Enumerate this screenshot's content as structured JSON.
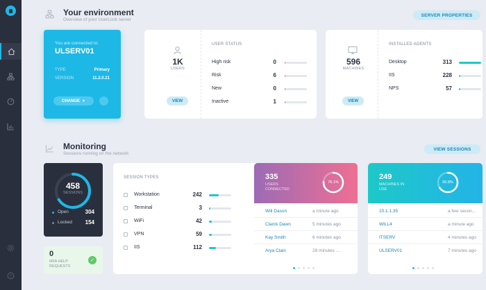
{
  "environment": {
    "title": "Your environment",
    "subtitle": "Overview of your UserLock server",
    "server_properties_label": "SERVER PROPERTIES",
    "connected_label": "You are connected to:",
    "server_name": "ULSERV01",
    "type_key": "TYPE",
    "type_value": "Primary",
    "version_key": "VERSION",
    "version_value": "11.2.0.21",
    "change_label": "CHANGE",
    "users": {
      "count": "1K",
      "label": "USERS",
      "view_label": "VIEW"
    },
    "user_status": {
      "header": "USER STATUS",
      "rows": [
        {
          "label": "High risk",
          "value": "0",
          "fraction": 0.04,
          "color": "#e86b8b"
        },
        {
          "label": "Risk",
          "value": "6",
          "fraction": 0.04,
          "color": "#e86b8b"
        },
        {
          "label": "New",
          "value": "0",
          "fraction": 0.04,
          "color": "#9b6fc6"
        },
        {
          "label": "Inactive",
          "value": "1",
          "fraction": 0.04,
          "color": "#9b6fc6"
        }
      ]
    },
    "machines": {
      "count": "596",
      "label": "MACHINES",
      "view_label": "VIEW"
    },
    "installed_agents": {
      "header": "INSTALLED AGENTS",
      "rows": [
        {
          "label": "Desktop",
          "value": "313",
          "fraction": 1.0,
          "color": "#1ec8c8"
        },
        {
          "label": "IIS",
          "value": "228",
          "fraction": 0.05,
          "color": "#1ec8c8"
        },
        {
          "label": "NPS",
          "value": "57",
          "fraction": 0.05,
          "color": "#1ec8c8"
        }
      ]
    }
  },
  "monitoring": {
    "title": "Monitoring",
    "subtitle": "Sessions running on the network",
    "view_sessions_label": "VIEW SESSIONS",
    "sessions": {
      "count": "458",
      "label": "SESSIONS",
      "open_label": "Open",
      "open_value": "304",
      "locked_label": "Locked",
      "locked_value": "154",
      "open_fraction": 0.66
    },
    "mfa": {
      "count": "0",
      "label": "MFA HELP REQUESTS"
    },
    "session_types": {
      "header": "SESSION TYPES",
      "rows": [
        {
          "label": "Workstation",
          "value": "242",
          "fraction": 0.45,
          "icon": "monitor-icon"
        },
        {
          "label": "Terminal",
          "value": "3",
          "fraction": 0.06,
          "icon": "terminal-icon"
        },
        {
          "label": "WiFi",
          "value": "42",
          "fraction": 0.12,
          "icon": "wifi-icon"
        },
        {
          "label": "VPN",
          "value": "59",
          "fraction": 0.14,
          "icon": "vpn-icon"
        },
        {
          "label": "IIS",
          "value": "112",
          "fraction": 0.3,
          "icon": "globe-icon"
        }
      ]
    },
    "users_connected": {
      "count": "335",
      "label_line1": "USERS",
      "label_line2": "CONNECTED",
      "percent": "76.1%",
      "fraction": 0.761,
      "rows": [
        {
          "name": "Will Dason",
          "time": "a minute ago"
        },
        {
          "name": "Clarck Dawn",
          "time": "5 minutes ago"
        },
        {
          "name": "Kay Smith",
          "time": "6 minutes ago"
        },
        {
          "name": "Arya Clain",
          "time": "28 minutes ..."
        }
      ]
    },
    "machines_in_use": {
      "count": "249",
      "label_line1": "MACHINES IN",
      "label_line2": "USE",
      "percent": "65.8%",
      "fraction": 0.658,
      "rows": [
        {
          "name": "10.1.1.35",
          "time": "a few secon..."
        },
        {
          "name": "WILL4",
          "time": "a minute ago"
        },
        {
          "name": "ITSERV",
          "time": "4 minutes ago"
        },
        {
          "name": "ULSERV01",
          "time": "7 minutes ago"
        }
      ]
    }
  },
  "colors": {
    "accent": "#1db8e6",
    "dark": "#2a2f3d",
    "purple": "#9b6fc6",
    "pink": "#e8709a",
    "teal": "#1ec8c8"
  }
}
